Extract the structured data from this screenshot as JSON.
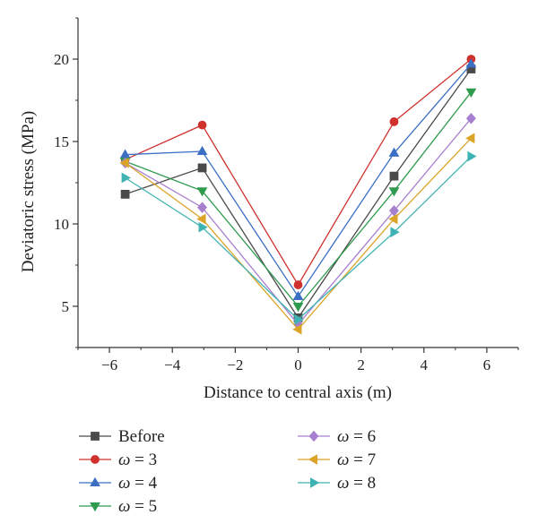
{
  "chart_data": {
    "type": "line",
    "title": "",
    "xlabel": "Distance to central axis (m)",
    "ylabel": "Deviatoric stress (MPa)",
    "xlim": [
      -7,
      7
    ],
    "ylim": [
      2.5,
      22.5
    ],
    "xticks": [
      -6,
      -4,
      -2,
      0,
      2,
      4,
      6
    ],
    "yticks": [
      5,
      10,
      15,
      20
    ],
    "xtick_labels": [
      "−6",
      "−4",
      "−2",
      "0",
      "2",
      "4",
      "6"
    ],
    "ytick_labels": [
      "5",
      "10",
      "15",
      "20"
    ],
    "x": [
      -5.5,
      -3.05,
      0,
      3.05,
      5.5
    ],
    "grid": false,
    "legend_position": "below",
    "series": [
      {
        "name": "Before",
        "symbol": "Before",
        "value": "",
        "color": "#4a4a4a",
        "marker": "square",
        "values": [
          11.8,
          13.4,
          4.3,
          12.9,
          19.4
        ]
      },
      {
        "name": "ω = 3",
        "symbol": "ω",
        "value": " = 3",
        "color": "#d0312d",
        "marker": "circle",
        "values": [
          13.9,
          16.0,
          6.3,
          16.2,
          20.0
        ]
      },
      {
        "name": "ω = 4",
        "symbol": "ω",
        "value": " = 4",
        "color": "#3b6fc4",
        "marker": "triangle-up",
        "values": [
          14.2,
          14.4,
          5.6,
          14.3,
          19.7
        ]
      },
      {
        "name": "ω = 5",
        "symbol": "ω",
        "value": " = 5",
        "color": "#2e9b4e",
        "marker": "triangle-down",
        "values": [
          13.8,
          12.0,
          5.0,
          12.0,
          18.0
        ]
      },
      {
        "name": "ω = 6",
        "symbol": "ω",
        "value": " = 6",
        "color": "#a77fcf",
        "marker": "diamond",
        "values": [
          13.7,
          11.0,
          3.9,
          10.8,
          16.4
        ]
      },
      {
        "name": "ω = 7",
        "symbol": "ω",
        "value": " = 7",
        "color": "#dba428",
        "marker": "triangle-left",
        "values": [
          13.7,
          10.3,
          3.6,
          10.3,
          15.2
        ]
      },
      {
        "name": "ω = 8",
        "symbol": "ω",
        "value": " = 8",
        "color": "#3fb3b3",
        "marker": "triangle-right",
        "values": [
          12.8,
          9.8,
          4.2,
          9.5,
          14.1
        ]
      }
    ]
  }
}
